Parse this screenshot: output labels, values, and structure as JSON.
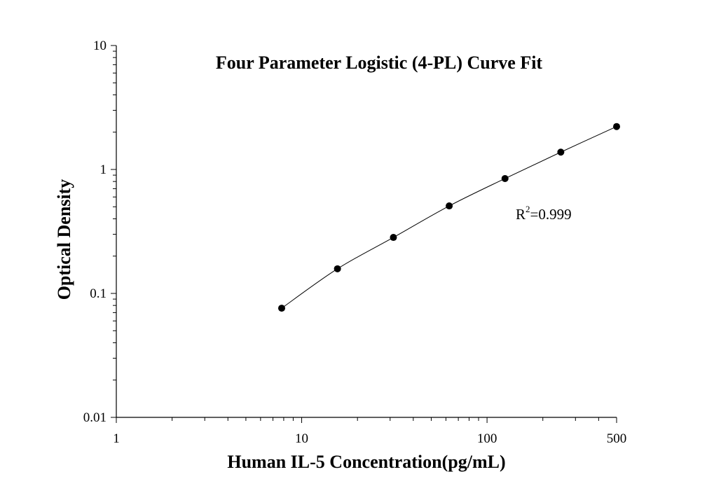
{
  "chart_data": {
    "type": "scatter",
    "title": "Four Parameter Logistic (4-PL) Curve Fit",
    "xlabel": "Human IL-5 Concentration(pg/mL)",
    "ylabel": "Optical Density",
    "x_scale": "log",
    "y_scale": "log",
    "xlim": [
      1,
      500
    ],
    "ylim": [
      0.01,
      10
    ],
    "x_ticks": [
      {
        "value": 1,
        "label": "1"
      },
      {
        "value": 10,
        "label": "10"
      },
      {
        "value": 100,
        "label": "100"
      },
      {
        "value": 500,
        "label": "500"
      }
    ],
    "y_ticks": [
      {
        "value": 0.01,
        "label": "0.01"
      },
      {
        "value": 0.1,
        "label": "0.1"
      },
      {
        "value": 1,
        "label": "1"
      },
      {
        "value": 10,
        "label": "10"
      }
    ],
    "series": [
      {
        "points": [
          {
            "x": 7.8,
            "y": 0.076
          },
          {
            "x": 15.6,
            "y": 0.158
          },
          {
            "x": 31.25,
            "y": 0.283
          },
          {
            "x": 62.5,
            "y": 0.508
          },
          {
            "x": 125,
            "y": 0.845
          },
          {
            "x": 250,
            "y": 1.38
          },
          {
            "x": 500,
            "y": 2.22
          }
        ],
        "fit": "4-PL curve"
      }
    ],
    "annotation": {
      "prefix": "R",
      "superscript": "2",
      "text": "=0.999"
    },
    "grid": false,
    "legend": "none"
  }
}
